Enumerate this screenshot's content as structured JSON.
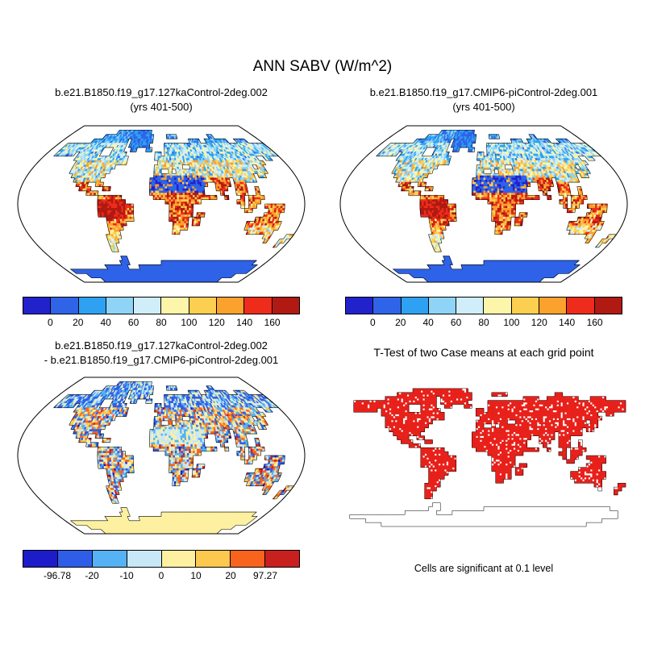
{
  "title": "ANN SABV (W/m^2)",
  "panels": {
    "top_left": {
      "title_line1": "b.e21.B1850.f19_g17.127kaControl-2deg.002",
      "title_line2": "(yrs 401-500)"
    },
    "top_right": {
      "title_line1": "b.e21.B1850.f19_g17.CMIP6-piControl-2deg.001",
      "title_line2": "(yrs 401-500)"
    },
    "bottom_left": {
      "title_line1": "b.e21.B1850.f19_g17.127kaControl-2deg.002",
      "title_line2": "- b.e21.B1850.f19_g17.CMIP6-piControl-2deg.001"
    },
    "bottom_right": {
      "title": "T-Test of two Case means at each grid point",
      "caption": "Cells are significant at 0.1 level"
    }
  },
  "colorbars": {
    "absolute": {
      "colors": [
        "#2222cc",
        "#2f63e8",
        "#2fa1f2",
        "#8fd4f6",
        "#cfeefa",
        "#fdf5aa",
        "#fdcf50",
        "#fba12e",
        "#ee2c1c",
        "#b01a12"
      ],
      "tick_labels": [
        "0",
        "20",
        "40",
        "60",
        "80",
        "100",
        "120",
        "140",
        "160"
      ]
    },
    "difference": {
      "colors": [
        "#1c1cc8",
        "#2e5ee8",
        "#55b2f4",
        "#c9e8f7",
        "#fdf0a0",
        "#fdc84e",
        "#f8641e",
        "#c8201e"
      ],
      "tick_labels": [
        "-96.78",
        "-20",
        "-10",
        "0",
        "10",
        "20",
        "97.27"
      ]
    }
  },
  "chart_data": [
    {
      "type": "heatmap",
      "panel": "top_left",
      "projection": "robinson",
      "title": "b.e21.B1850.f19_g17.127kaControl-2deg.002 (yrs 401-500)",
      "units": "W/m^2",
      "variable": "ANN SABV",
      "colorbar_ticks": [
        0,
        20,
        40,
        60,
        80,
        100,
        120,
        140,
        160
      ],
      "palette": [
        "#2222cc",
        "#2f63e8",
        "#2fa1f2",
        "#8fd4f6",
        "#cfeefa",
        "#fdf5aa",
        "#fdcf50",
        "#fba12e",
        "#ee2c1c",
        "#b01a12"
      ],
      "notes": "land-only field; Sahara/Arabia/Greenland/Antarctica low (blue), Amazon and tropics high (red), NH midlatitudes mixed"
    },
    {
      "type": "heatmap",
      "panel": "top_right",
      "projection": "robinson",
      "title": "b.e21.B1850.f19_g17.CMIP6-piControl-2deg.001 (yrs 401-500)",
      "units": "W/m^2",
      "variable": "ANN SABV",
      "colorbar_ticks": [
        0,
        20,
        40,
        60,
        80,
        100,
        120,
        140,
        160
      ],
      "palette": [
        "#2222cc",
        "#2f63e8",
        "#2fa1f2",
        "#8fd4f6",
        "#cfeefa",
        "#fdf5aa",
        "#fdcf50",
        "#fba12e",
        "#ee2c1c",
        "#b01a12"
      ],
      "notes": "nearly identical spatial pattern to top_left"
    },
    {
      "type": "heatmap",
      "panel": "bottom_left",
      "projection": "robinson",
      "title": "b.e21.B1850.f19_g17.127kaControl-2deg.002 - b.e21.B1850.f19_g17.CMIP6-piControl-2deg.001",
      "units": "W/m^2",
      "data_min": -96.78,
      "data_max": 97.27,
      "colorbar_ticks": [
        -96.78,
        -20,
        -10,
        0,
        10,
        20,
        97.27
      ],
      "palette": [
        "#1c1cc8",
        "#2e5ee8",
        "#55b2f4",
        "#c9e8f7",
        "#fdf0a0",
        "#fdc84e",
        "#f8641e",
        "#c8201e"
      ],
      "notes": "difference map; negative (blue) over NH high latitudes, mixed speckle in tropics, weakly positive (pale yellow) Antarctica"
    },
    {
      "type": "heatmap",
      "panel": "bottom_right",
      "projection": "equirectangular",
      "title": "T-Test of two Case means at each grid point",
      "annotation": "Cells are significant at 0.1 level",
      "significant_color": "#e8201a",
      "notes": "almost all land cells significant (red) except scattered cells and Antarctica (white)"
    }
  ]
}
